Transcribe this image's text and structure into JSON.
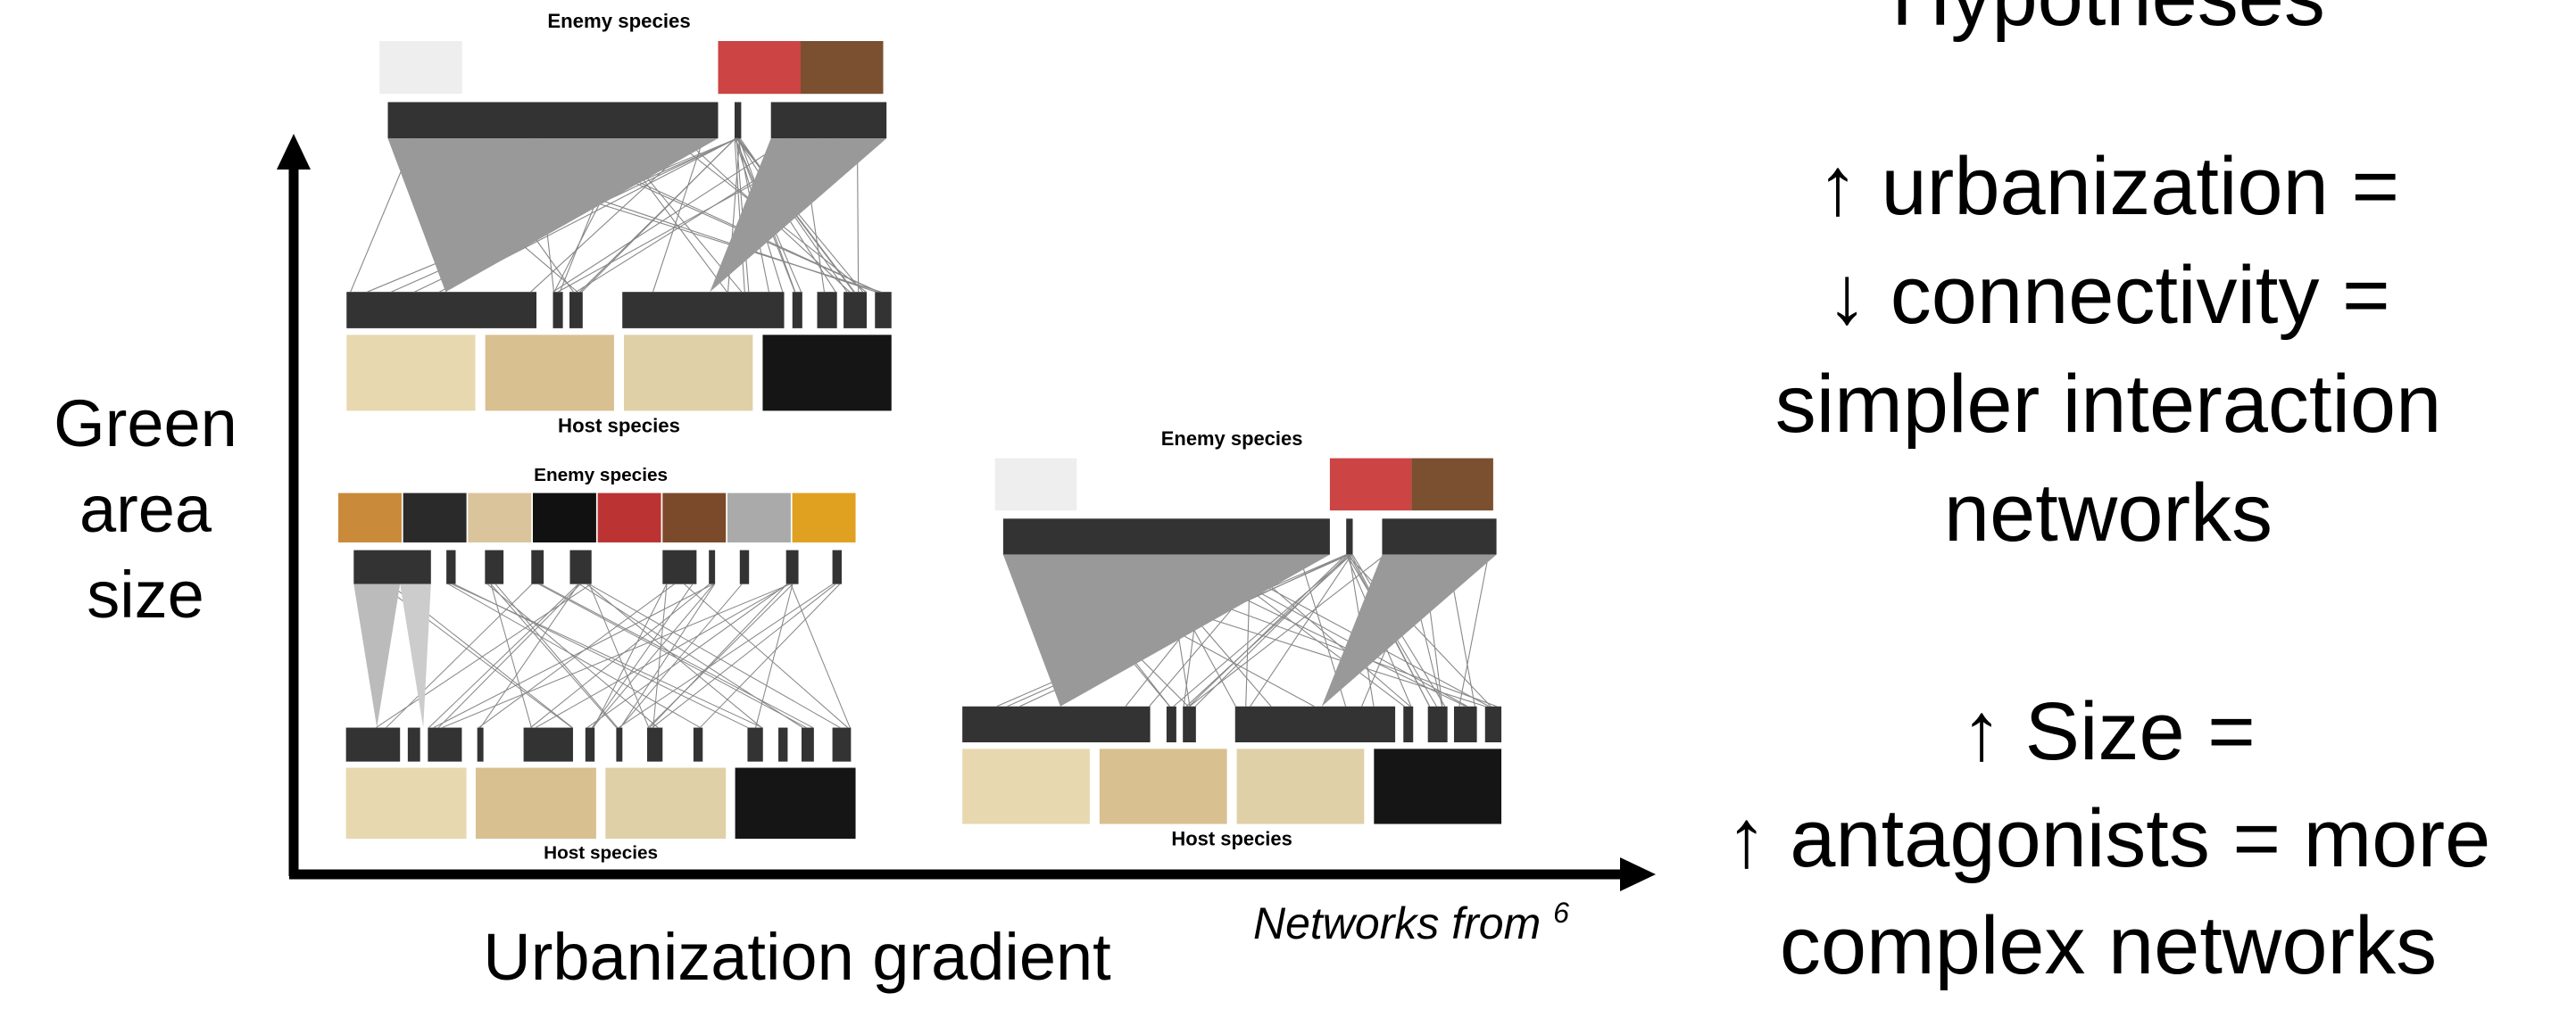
{
  "hypotheses": {
    "heading": "Hypotheses",
    "items": [
      {
        "lines": [
          "↑ urbanization =",
          "↓ connectivity =",
          "simpler interaction",
          "networks"
        ]
      },
      {
        "lines": [
          "↑ Size =",
          "↑ antagonists = more",
          "complex networks"
        ]
      }
    ]
  },
  "axes": {
    "y_label": [
      "Green",
      "area",
      "size"
    ],
    "x_label": "Urbanization gradient"
  },
  "credit": {
    "text": "Networks from",
    "ref": "6"
  },
  "networks": [
    {
      "enemy_label": "Enemy species",
      "host_label": "Host species"
    },
    {
      "enemy_label": "Enemy species",
      "host_label": "Host species"
    },
    {
      "enemy_label": "Enemy species",
      "host_label": "Host species"
    }
  ]
}
